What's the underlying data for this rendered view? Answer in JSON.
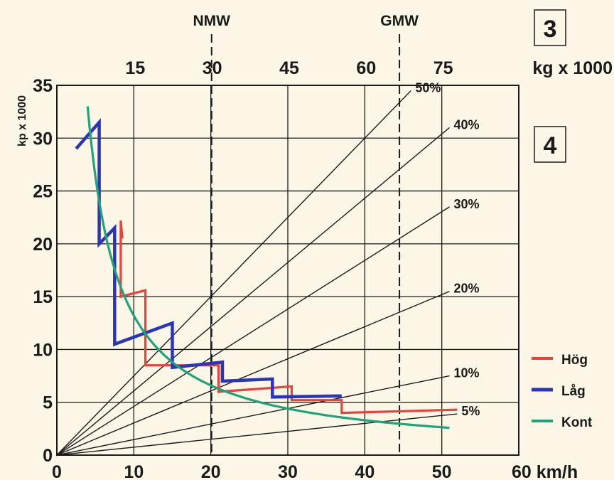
{
  "chart_data": {
    "type": "line",
    "ylabel": "kp x 1000",
    "xlim": [
      0,
      60
    ],
    "ylim": [
      0,
      35
    ],
    "x_ticks": [
      "0",
      "10",
      "20",
      "30",
      "40",
      "50",
      "60 km/h"
    ],
    "y_ticks": [
      "0",
      "5",
      "10",
      "15",
      "20",
      "25",
      "30",
      "35"
    ],
    "grid": true,
    "top_axis": {
      "unit_label": "kg x 1000",
      "ticks": [
        {
          "label": "15",
          "at": 10
        },
        {
          "label": "30",
          "at": 20
        },
        {
          "label": "45",
          "at": 30
        },
        {
          "label": "60",
          "at": 40
        },
        {
          "label": "75",
          "at": 50
        }
      ]
    },
    "markers": [
      {
        "label": "NMW",
        "x": 20.1
      },
      {
        "label": "GMW",
        "x": 44.5
      }
    ],
    "grade_lines": [
      {
        "label": "50%",
        "end": [
          46,
          34.5
        ]
      },
      {
        "label": "40%",
        "end": [
          51,
          31.0
        ]
      },
      {
        "label": "30%",
        "end": [
          51,
          23.5
        ]
      },
      {
        "label": "20%",
        "end": [
          51,
          15.5
        ]
      },
      {
        "label": "10%",
        "end": [
          51,
          7.5
        ]
      },
      {
        "label": "5%",
        "end": [
          52,
          3.9
        ]
      }
    ],
    "series": [
      {
        "name": "Hög",
        "color": "#e8433a",
        "points": [
          [
            8.5,
            20.5
          ],
          [
            8.3,
            22.2
          ],
          [
            8.3,
            15.0
          ],
          [
            11.5,
            15.6
          ],
          [
            11.5,
            8.5
          ],
          [
            21.0,
            8.5
          ],
          [
            21.0,
            6.0
          ],
          [
            30.5,
            6.5
          ],
          [
            30.5,
            5.2
          ],
          [
            37,
            5.2
          ],
          [
            37,
            4.0
          ],
          [
            52,
            4.3
          ]
        ]
      },
      {
        "name": "Låg",
        "color": "#2a35b8",
        "points": [
          [
            2.5,
            29.0
          ],
          [
            5.5,
            31.5
          ],
          [
            5.5,
            20.0
          ],
          [
            7.5,
            21.5
          ],
          [
            7.5,
            10.5
          ],
          [
            15,
            12.5
          ],
          [
            15,
            8.3
          ],
          [
            21.5,
            8.8
          ],
          [
            21.5,
            7.0
          ],
          [
            28,
            7.2
          ],
          [
            28,
            5.5
          ],
          [
            37,
            5.6
          ]
        ]
      },
      {
        "name": "Kont",
        "color": "#1fa37a",
        "k": 132,
        "x_from": 4,
        "x_to": 51
      }
    ]
  },
  "badges": {
    "top": "3",
    "bottom": "4"
  }
}
